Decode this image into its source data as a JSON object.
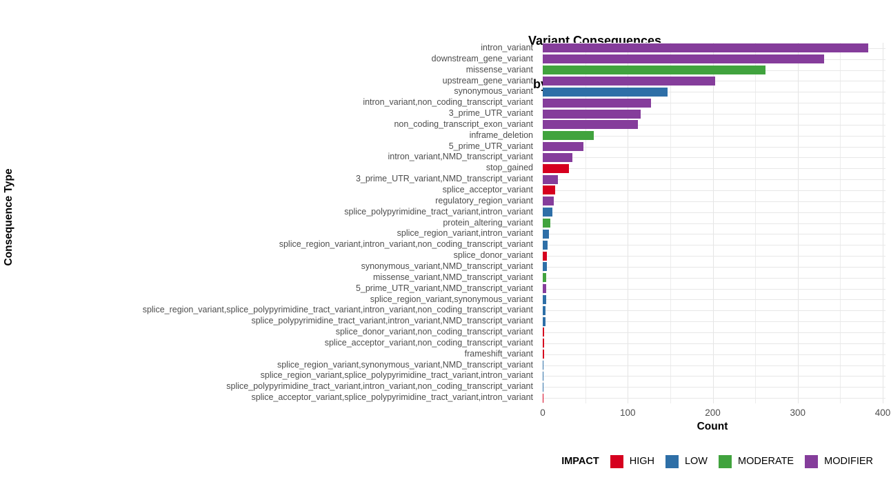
{
  "chart_data": {
    "type": "bar",
    "orientation": "horizontal",
    "title_line1": "Variant Consequences",
    "title_line2": "by Impact",
    "xlabel": "Count",
    "ylabel": "Consequence Type",
    "xlim": [
      0,
      400
    ],
    "xticks": [
      0,
      100,
      200,
      300,
      400
    ],
    "minor_gridlines": [
      50,
      150,
      250,
      350
    ],
    "grid": true,
    "impact_colors": {
      "HIGH": "#d6001f",
      "LOW": "#2e6fa7",
      "MODERATE": "#41a33e",
      "MODIFIER": "#853d9b"
    },
    "legend": {
      "title": "IMPACT",
      "position": "bottom-right",
      "entries": [
        "HIGH",
        "LOW",
        "MODERATE",
        "MODIFIER"
      ]
    },
    "bars": [
      {
        "label": "intron_variant",
        "value": 383,
        "impact": "MODIFIER"
      },
      {
        "label": "downstream_gene_variant",
        "value": 331,
        "impact": "MODIFIER"
      },
      {
        "label": "missense_variant",
        "value": 262,
        "impact": "MODERATE"
      },
      {
        "label": "upstream_gene_variant",
        "value": 203,
        "impact": "MODIFIER"
      },
      {
        "label": "synonymous_variant",
        "value": 147,
        "impact": "LOW"
      },
      {
        "label": "intron_variant,non_coding_transcript_variant",
        "value": 127,
        "impact": "MODIFIER"
      },
      {
        "label": "3_prime_UTR_variant",
        "value": 115,
        "impact": "MODIFIER"
      },
      {
        "label": "non_coding_transcript_exon_variant",
        "value": 112,
        "impact": "MODIFIER"
      },
      {
        "label": "inframe_deletion",
        "value": 60,
        "impact": "MODERATE"
      },
      {
        "label": "5_prime_UTR_variant",
        "value": 48,
        "impact": "MODIFIER"
      },
      {
        "label": "intron_variant,NMD_transcript_variant",
        "value": 35,
        "impact": "MODIFIER"
      },
      {
        "label": "stop_gained",
        "value": 31,
        "impact": "HIGH"
      },
      {
        "label": "3_prime_UTR_variant,NMD_transcript_variant",
        "value": 18,
        "impact": "MODIFIER"
      },
      {
        "label": "splice_acceptor_variant",
        "value": 15,
        "impact": "HIGH"
      },
      {
        "label": "regulatory_region_variant",
        "value": 13,
        "impact": "MODIFIER"
      },
      {
        "label": "splice_polypyrimidine_tract_variant,intron_variant",
        "value": 11,
        "impact": "LOW"
      },
      {
        "label": "protein_altering_variant",
        "value": 9,
        "impact": "MODERATE"
      },
      {
        "label": "splice_region_variant,intron_variant",
        "value": 7,
        "impact": "LOW"
      },
      {
        "label": "splice_region_variant,intron_variant,non_coding_transcript_variant",
        "value": 6,
        "impact": "LOW"
      },
      {
        "label": "splice_donor_variant",
        "value": 5,
        "impact": "HIGH"
      },
      {
        "label": "synonymous_variant,NMD_transcript_variant",
        "value": 5,
        "impact": "LOW"
      },
      {
        "label": "missense_variant,NMD_transcript_variant",
        "value": 4,
        "impact": "MODERATE"
      },
      {
        "label": "5_prime_UTR_variant,NMD_transcript_variant",
        "value": 4,
        "impact": "MODIFIER"
      },
      {
        "label": "splice_region_variant,synonymous_variant",
        "value": 4,
        "impact": "LOW"
      },
      {
        "label": "splice_region_variant,splice_polypyrimidine_tract_variant,intron_variant,non_coding_transcript_variant",
        "value": 3,
        "impact": "LOW"
      },
      {
        "label": "splice_polypyrimidine_tract_variant,intron_variant,NMD_transcript_variant",
        "value": 3,
        "impact": "LOW"
      },
      {
        "label": "splice_donor_variant,non_coding_transcript_variant",
        "value": 2,
        "impact": "HIGH"
      },
      {
        "label": "splice_acceptor_variant,non_coding_transcript_variant",
        "value": 2,
        "impact": "HIGH"
      },
      {
        "label": "frameshift_variant",
        "value": 2,
        "impact": "HIGH"
      },
      {
        "label": "splice_region_variant,synonymous_variant,NMD_transcript_variant",
        "value": 1,
        "impact": "LOW"
      },
      {
        "label": "splice_region_variant,splice_polypyrimidine_tract_variant,intron_variant",
        "value": 1,
        "impact": "LOW"
      },
      {
        "label": "splice_polypyrimidine_tract_variant,intron_variant,non_coding_transcript_variant",
        "value": 1,
        "impact": "LOW"
      },
      {
        "label": "splice_acceptor_variant,splice_polypyrimidine_tract_variant,intron_variant",
        "value": 1,
        "impact": "HIGH"
      }
    ]
  }
}
